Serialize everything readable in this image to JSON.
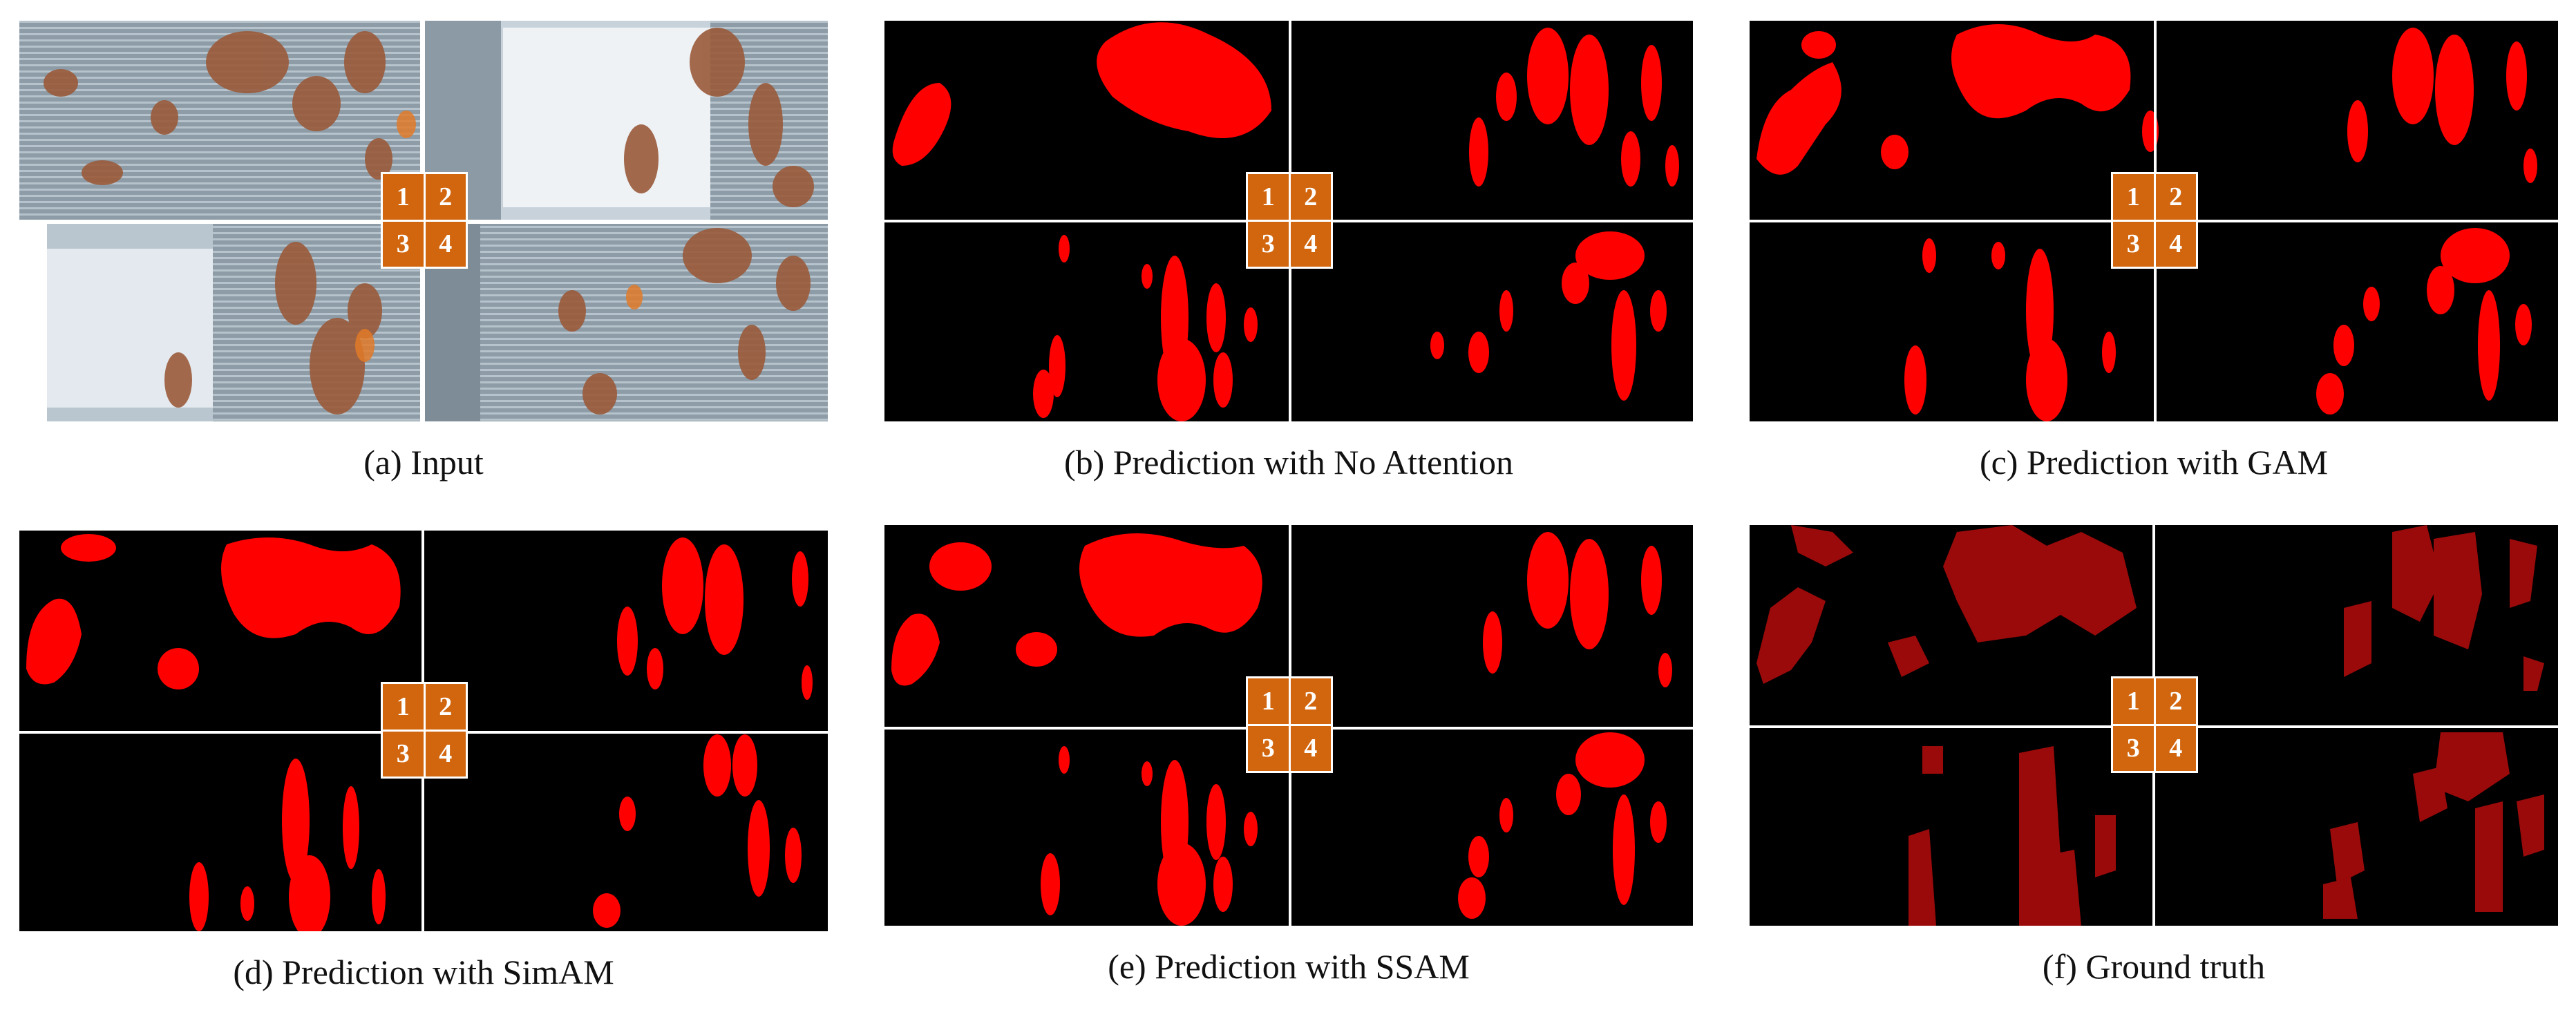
{
  "panels": [
    {
      "id": "a",
      "caption": "(a) Input",
      "kind": "input"
    },
    {
      "id": "b",
      "caption": "(b) Prediction with No Attention",
      "kind": "pred"
    },
    {
      "id": "c",
      "caption": "(c) Prediction with GAM",
      "kind": "pred"
    },
    {
      "id": "d",
      "caption": "(d) Prediction with SimAM",
      "kind": "pred"
    },
    {
      "id": "e",
      "caption": "(e) Prediction with SSAM",
      "kind": "pred"
    },
    {
      "id": "f",
      "caption": "(f) Ground truth",
      "kind": "gt"
    }
  ],
  "quadrant_labels": [
    "1",
    "2",
    "3",
    "4"
  ],
  "colors": {
    "prediction": "#ff0000",
    "ground_truth": "#9b0a0a",
    "background": "#000000",
    "quad_badge": "#d2660f",
    "divider": "#ffffff"
  }
}
